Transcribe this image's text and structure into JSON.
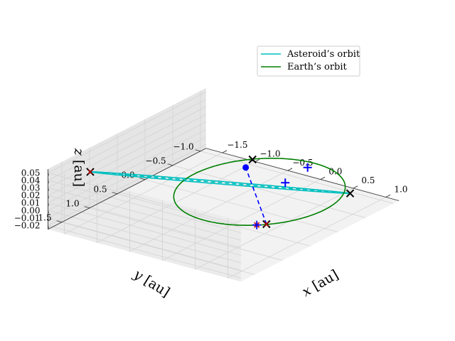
{
  "chart_data": {
    "type": "3d-line",
    "title": "",
    "xlabel": "$x$ [au]",
    "ylabel": "$y$ [au]",
    "zlabel": "$z$ [au]",
    "axis_labels": {
      "x": "x [au]",
      "y": "y [au]",
      "z": "z [au]"
    },
    "xticks": [
      "−1.5",
      "−1.0",
      "−0.5",
      "0.0",
      "0.5",
      "1.0"
    ],
    "yticks": [
      "−1.0",
      "−0.5",
      "0.0",
      "0.5",
      "1.0",
      "1.5"
    ],
    "zticks": [
      "−0.02",
      "−0.01",
      "0.00",
      "0.01",
      "0.02",
      "0.03",
      "0.04",
      "0.05"
    ],
    "xlim": [
      -1.75,
      1.2
    ],
    "ylim": [
      -1.1,
      1.75
    ],
    "zlim": [
      -0.025,
      0.055
    ],
    "grid": true,
    "legend_position": "top-right",
    "series": [
      {
        "name": "Asteroid’s orbit",
        "color": "#00bfbf",
        "kind": "ellipse",
        "center": [
          -0.325,
          0.325,
          0.0168
        ],
        "u_axis": [
          1.075,
          -1.075,
          -0.0295
        ],
        "v_axis": [
          0.35,
          0.35,
          0.0193
        ]
      },
      {
        "name": "Earth’s orbit",
        "color": "#008000",
        "kind": "circle",
        "center": [
          0,
          0,
          0
        ],
        "radius": 1.0
      }
    ],
    "markers": [
      {
        "label": "perihelion",
        "symbol": "x",
        "color": "#000000",
        "position": [
          0.75,
          -0.75,
          -0.0127
        ]
      },
      {
        "label": "aphelion",
        "symbol": "x",
        "color": "#000000",
        "overlay": "x",
        "overlay_color": "#c00000",
        "position": [
          -1.4,
          1.4,
          0.0463
        ]
      },
      {
        "label": "earth-point-1",
        "symbol": "x",
        "color": "#000000",
        "position": [
          -0.7,
          -0.7,
          0
        ]
      },
      {
        "label": "earth-point-2",
        "symbol": "x",
        "color": "#000000",
        "overlay": "x",
        "overlay_color": "#c00000",
        "position": [
          0.7,
          0.7,
          0
        ]
      },
      {
        "label": "earth-blue",
        "symbol": "+",
        "color": "#0000ff",
        "overlay": "x",
        "overlay_color": "#c00000",
        "position": [
          0.62,
          0.78,
          0
        ]
      },
      {
        "label": "node-a",
        "symbol": "+",
        "color": "#0000ff",
        "position": [
          0.08,
          -0.37,
          0
        ]
      },
      {
        "label": "node-b",
        "symbol": "+",
        "color": "#0000ff",
        "position": [
          -0.07,
          -0.95,
          -0.0052
        ]
      },
      {
        "label": "asteroid",
        "symbol": "dot",
        "color": "#0000ff",
        "position": [
          -0.55,
          -0.4,
          0.0042
        ]
      }
    ],
    "lines": [
      {
        "label": "apsidal-line",
        "style": "dashed",
        "color": "#00bfbf",
        "from": [
          -1.4,
          1.4,
          0.0463
        ],
        "to": [
          0.75,
          -0.75,
          -0.0127
        ]
      },
      {
        "label": "sight-line",
        "style": "dashed",
        "color": "#0000ff",
        "from": [
          0.7,
          0.7,
          0
        ],
        "to": [
          -0.55,
          -0.4,
          0.0042
        ]
      }
    ]
  }
}
